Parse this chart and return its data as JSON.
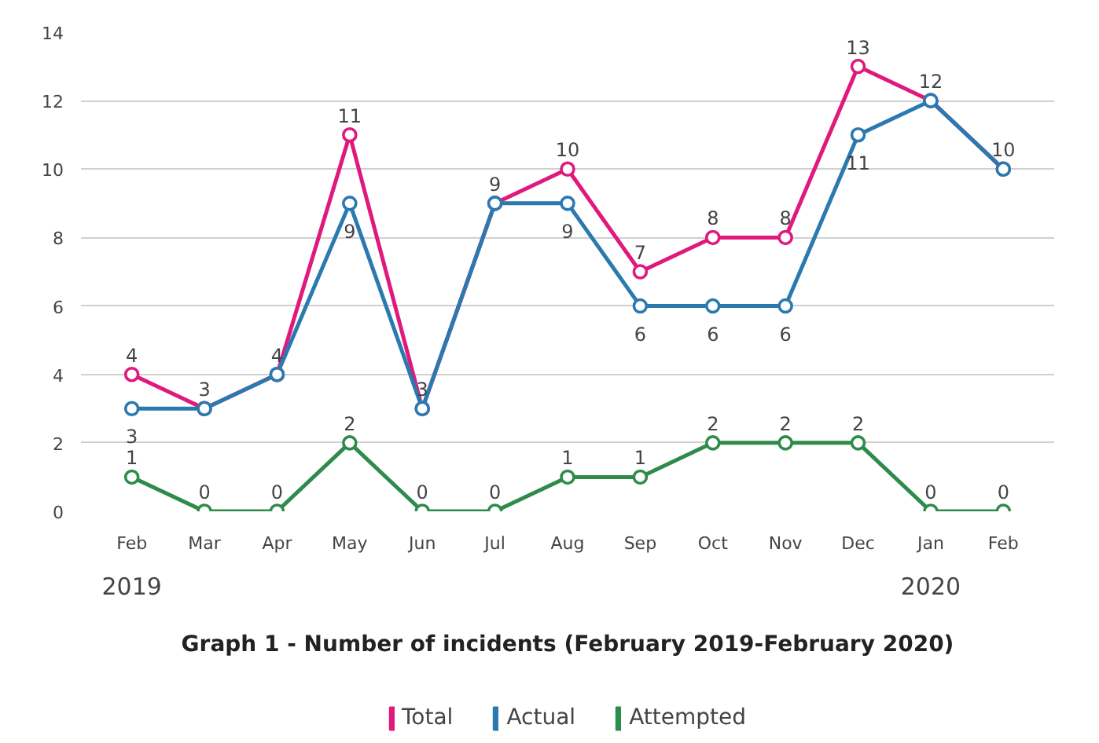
{
  "chart_data": {
    "type": "line",
    "title": "Graph 1 - Number of incidents (February 2019-February 2020)",
    "categories": [
      "Feb",
      "Mar",
      "Apr",
      "May",
      "Jun",
      "Jul",
      "Aug",
      "Sep",
      "Oct",
      "Nov",
      "Dec",
      "Jan",
      "Feb"
    ],
    "series": [
      {
        "name": "Total",
        "color": "#e0197d",
        "values": [
          4,
          3,
          4,
          11,
          3,
          9,
          10,
          7,
          8,
          8,
          13,
          12,
          10
        ],
        "value_labels": [
          "4",
          "3",
          "4",
          "11",
          "3",
          "9",
          "10",
          "7",
          "8",
          "8",
          "13",
          "12",
          "10"
        ]
      },
      {
        "name": "Actual",
        "color": "#2a7ab0",
        "values": [
          3,
          3,
          4,
          9,
          3,
          9,
          9,
          6,
          6,
          6,
          11,
          12,
          10
        ],
        "value_labels": [
          "3",
          null,
          null,
          "9",
          null,
          null,
          "9",
          "6",
          "6",
          "6",
          "11",
          null,
          null
        ]
      },
      {
        "name": "Attempted",
        "color": "#2e8b4a",
        "values": [
          1,
          0,
          0,
          2,
          0,
          0,
          1,
          1,
          2,
          2,
          2,
          0,
          0
        ],
        "value_labels": [
          "1",
          "0",
          "0",
          "2",
          "0",
          "0",
          "1",
          "1",
          "2",
          "2",
          "2",
          "0",
          "0"
        ]
      }
    ],
    "annotations": [
      "2019",
      "2020"
    ],
    "ylim": [
      0,
      14
    ],
    "yticks": [
      0,
      2,
      4,
      6,
      8,
      10,
      12,
      14
    ],
    "grid": "y",
    "legend": "bottom",
    "marker": "circle",
    "line_style": "solid"
  }
}
